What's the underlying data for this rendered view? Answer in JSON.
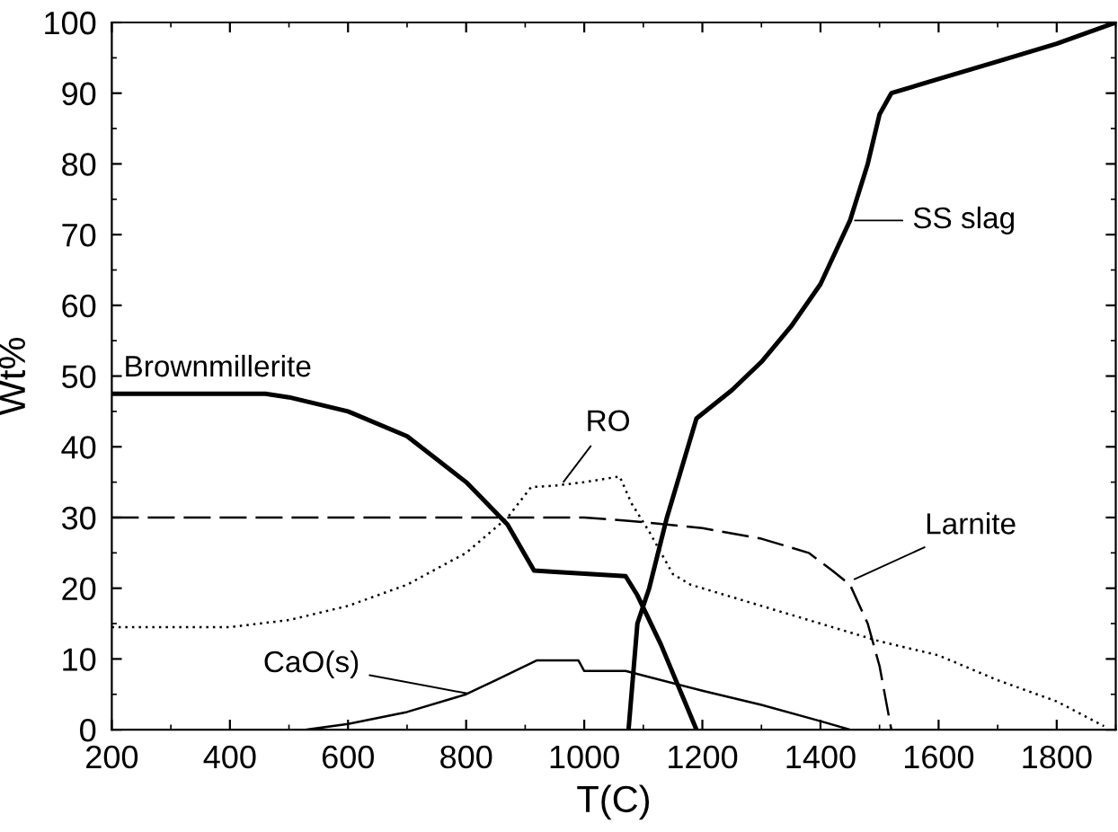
{
  "chart_data": {
    "type": "line",
    "xlabel": "T(C)",
    "ylabel": "Wt%",
    "xlim": [
      200,
      1900
    ],
    "ylim": [
      0,
      100
    ],
    "xticks": [
      200,
      400,
      600,
      800,
      1000,
      1200,
      1400,
      1600,
      1800
    ],
    "yticks": [
      0,
      10,
      20,
      30,
      40,
      50,
      60,
      70,
      80,
      90,
      100
    ],
    "grid": false,
    "legend": false,
    "marker": "none",
    "series": [
      {
        "color": "#000000",
        "line_style": "solid",
        "x": [
          200,
          460,
          500,
          600,
          700,
          800,
          870,
          915,
          950,
          1070,
          1090,
          1130,
          1160,
          1190
        ],
        "values": [
          47.5,
          47.5,
          47,
          45,
          41.5,
          35,
          29,
          22.5,
          22.3,
          21.7,
          19,
          12,
          6,
          0
        ]
      },
      {
        "color": "#000000",
        "line_style": "solid",
        "x": [
          1075,
          1090,
          1110,
          1140,
          1190,
          1250,
          1300,
          1350,
          1400,
          1450,
          1480,
          1500,
          1520,
          1600,
          1700,
          1800,
          1900
        ],
        "values": [
          0,
          15,
          20,
          30,
          44,
          48,
          52,
          57,
          63,
          72,
          80,
          87,
          90,
          92,
          94.5,
          97,
          100
        ]
      },
      {
        "color": "#000000",
        "line_style": "dotted",
        "x": [
          200,
          400,
          500,
          600,
          700,
          800,
          870,
          910,
          950,
          1000,
          1060,
          1080,
          1110,
          1150,
          1180,
          1300,
          1500,
          1600,
          1700,
          1800,
          1880
        ],
        "values": [
          14.5,
          14.5,
          15.5,
          17.5,
          20.5,
          25,
          30,
          34.3,
          34.5,
          35,
          35.8,
          32,
          28,
          22,
          20.5,
          17.5,
          12.5,
          10.5,
          7,
          4,
          0.5
        ]
      },
      {
        "color": "#000000",
        "line_style": "dashed",
        "x": [
          200,
          1000,
          1080,
          1200,
          1300,
          1380,
          1420,
          1450,
          1480,
          1500,
          1520
        ],
        "values": [
          30,
          30,
          29.5,
          28.5,
          27,
          25,
          22.5,
          20.5,
          15,
          9,
          0
        ]
      },
      {
        "color": "#000000",
        "line_style": "solid",
        "x": [
          530,
          600,
          700,
          800,
          850,
          920,
          990,
          1000,
          1070,
          1200,
          1300,
          1400,
          1450
        ],
        "values": [
          0,
          0.8,
          2.5,
          5,
          7,
          9.8,
          9.8,
          8.3,
          8.3,
          5.5,
          3.5,
          1.2,
          0
        ]
      }
    ],
    "annotations": [
      {
        "text": "Brownmillerite",
        "x": 220,
        "y": 47.5
      },
      {
        "text": "SS slag",
        "x": 1450,
        "y": 72
      },
      {
        "text": "RO",
        "x": 960,
        "y": 34.5
      },
      {
        "text": "Larnite",
        "x": 1450,
        "y": 21
      },
      {
        "text": "CaO(s)",
        "x": 810,
        "y": 5
      }
    ]
  }
}
